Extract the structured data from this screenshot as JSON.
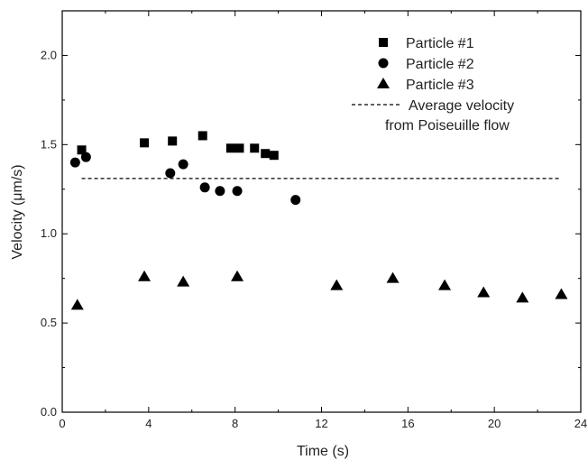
{
  "chart_data": {
    "type": "scatter",
    "title": "",
    "xlabel": "Time (s)",
    "ylabel": "Velocity (μm/s)",
    "xlim": [
      0,
      24
    ],
    "ylim": [
      0.0,
      2.25
    ],
    "grid": false,
    "legend_position": "top-right",
    "x_ticks": [
      0,
      4,
      8,
      12,
      16,
      20,
      24
    ],
    "x_tick_labels": [
      "0",
      "4",
      "8",
      "12",
      "16",
      "20",
      "24"
    ],
    "y_ticks": [
      0.0,
      0.5,
      1.0,
      1.5,
      2.0
    ],
    "y_tick_labels": [
      "0.0",
      "0.5",
      "1.0",
      "1.5",
      "2.0"
    ],
    "series": [
      {
        "name": "Particle #1",
        "marker": "square",
        "color": "#000000",
        "x": [
          0.9,
          3.8,
          5.1,
          6.5,
          7.8,
          8.2,
          8.9,
          9.4,
          9.8
        ],
        "y": [
          1.47,
          1.51,
          1.52,
          1.55,
          1.48,
          1.48,
          1.48,
          1.45,
          1.44
        ]
      },
      {
        "name": "Particle #2",
        "marker": "circle",
        "color": "#000000",
        "x": [
          0.6,
          1.1,
          5.0,
          5.6,
          6.6,
          7.3,
          8.1,
          10.8
        ],
        "y": [
          1.4,
          1.43,
          1.34,
          1.39,
          1.26,
          1.24,
          1.24,
          1.19
        ]
      },
      {
        "name": "Particle #3",
        "marker": "triangle",
        "color": "#000000",
        "x": [
          0.7,
          3.8,
          5.6,
          8.1,
          12.7,
          15.3,
          17.7,
          19.5,
          21.3,
          23.1
        ],
        "y": [
          0.6,
          0.76,
          0.73,
          0.76,
          0.71,
          0.75,
          0.71,
          0.67,
          0.64,
          0.66
        ]
      }
    ],
    "reference_line": {
      "name_line1": "Average velocity",
      "name_line2": "from Poiseuille flow",
      "y": 1.31,
      "x_start": 0.9,
      "x_end": 23.1,
      "style": "dashed"
    }
  }
}
